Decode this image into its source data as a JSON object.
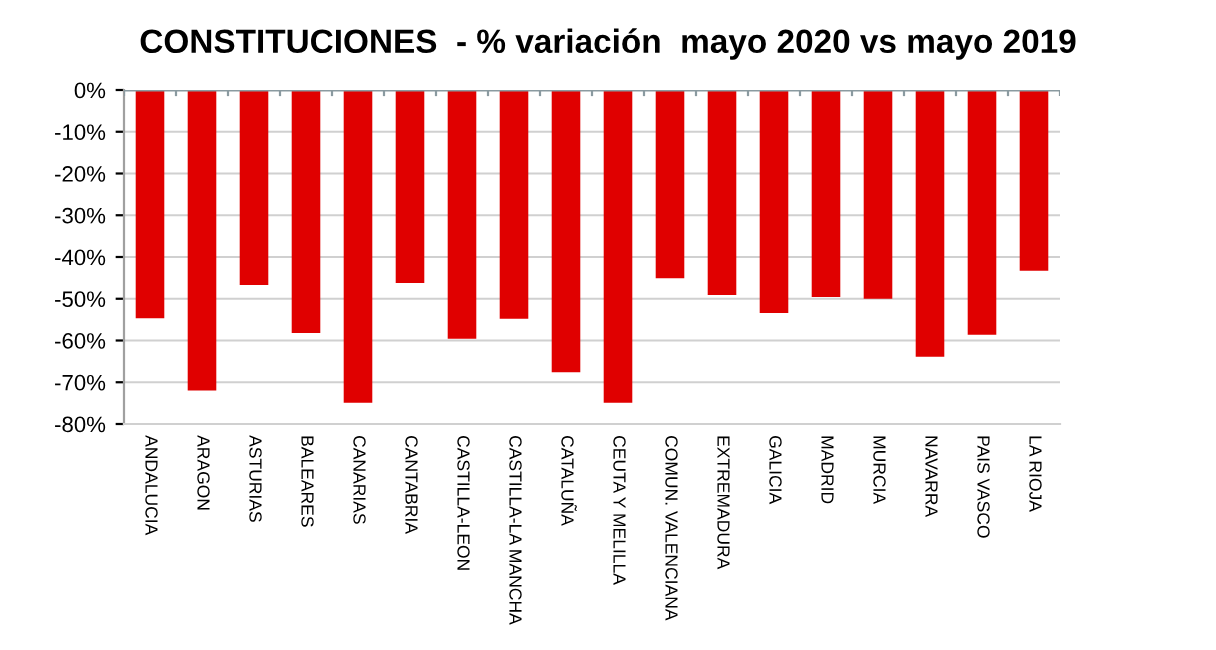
{
  "chart_data": {
    "type": "bar",
    "title": "CONSTITUCIONES  - % variación  mayo 2020 vs mayo 2019",
    "categories": [
      "ANDALUCIA",
      "ARAGON",
      "ASTURIAS",
      "BALEARES",
      "CANARIAS",
      "CANTABRIA",
      "CASTILLA-LEON",
      "CASTILLA-LA MANCHA",
      "CATALUÑA",
      "CEUTA Y MELILLA",
      "COMUN. VALENCIANA",
      "EXTREMADURA",
      "GALICIA",
      "MADRID",
      "MURCIA",
      "NAVARRA",
      "PAIS VASCO",
      "LA RIOJA"
    ],
    "values": [
      -54.7,
      -72.0,
      -46.7,
      -58.2,
      -74.9,
      -46.2,
      -59.6,
      -54.8,
      -67.6,
      -74.9,
      -45.1,
      -49.1,
      -53.4,
      -49.6,
      -50.0,
      -63.9,
      -58.6,
      -43.3
    ],
    "color": "#e00000",
    "ylim": [
      -80,
      0
    ],
    "yticks": [
      {
        "value": -80,
        "label": "-80%"
      },
      {
        "value": -70,
        "label": "-70%"
      },
      {
        "value": -60,
        "label": "-60%"
      },
      {
        "value": -50,
        "label": "-50%"
      },
      {
        "value": -40,
        "label": "-40%"
      },
      {
        "value": -30,
        "label": "-30%"
      },
      {
        "value": -20,
        "label": "-20%"
      },
      {
        "value": -10,
        "label": "-10%"
      },
      {
        "value": 0,
        "label": "0%"
      }
    ],
    "grid": "y"
  }
}
